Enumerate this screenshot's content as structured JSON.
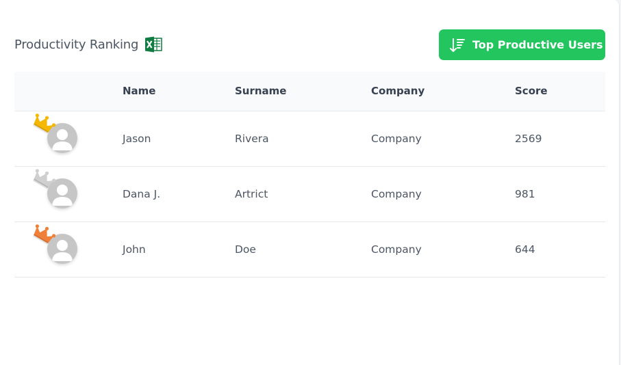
{
  "header": {
    "title": "Productivity Ranking",
    "export_icon": "excel-icon",
    "button_label": "Top Productive Users",
    "button_icon": "sort-descending-icon",
    "accent": "#22c55e"
  },
  "table": {
    "columns": [
      "",
      "Name",
      "Surname",
      "Company",
      "Score"
    ],
    "rows": [
      {
        "rank_icon": "gold-crown-icon",
        "crown_color": "#f5b700",
        "name": "Jason",
        "surname": "Rivera",
        "company": "Company",
        "score": "2569"
      },
      {
        "rank_icon": "silver-crown-icon",
        "crown_color": "#cfcfcf",
        "name": "Dana J.",
        "surname": "Artrict",
        "company": "Company",
        "score": "981"
      },
      {
        "rank_icon": "bronze-crown-icon",
        "crown_color": "#f08038",
        "name": "John",
        "surname": "Doe",
        "company": "Company",
        "score": "644"
      }
    ]
  }
}
